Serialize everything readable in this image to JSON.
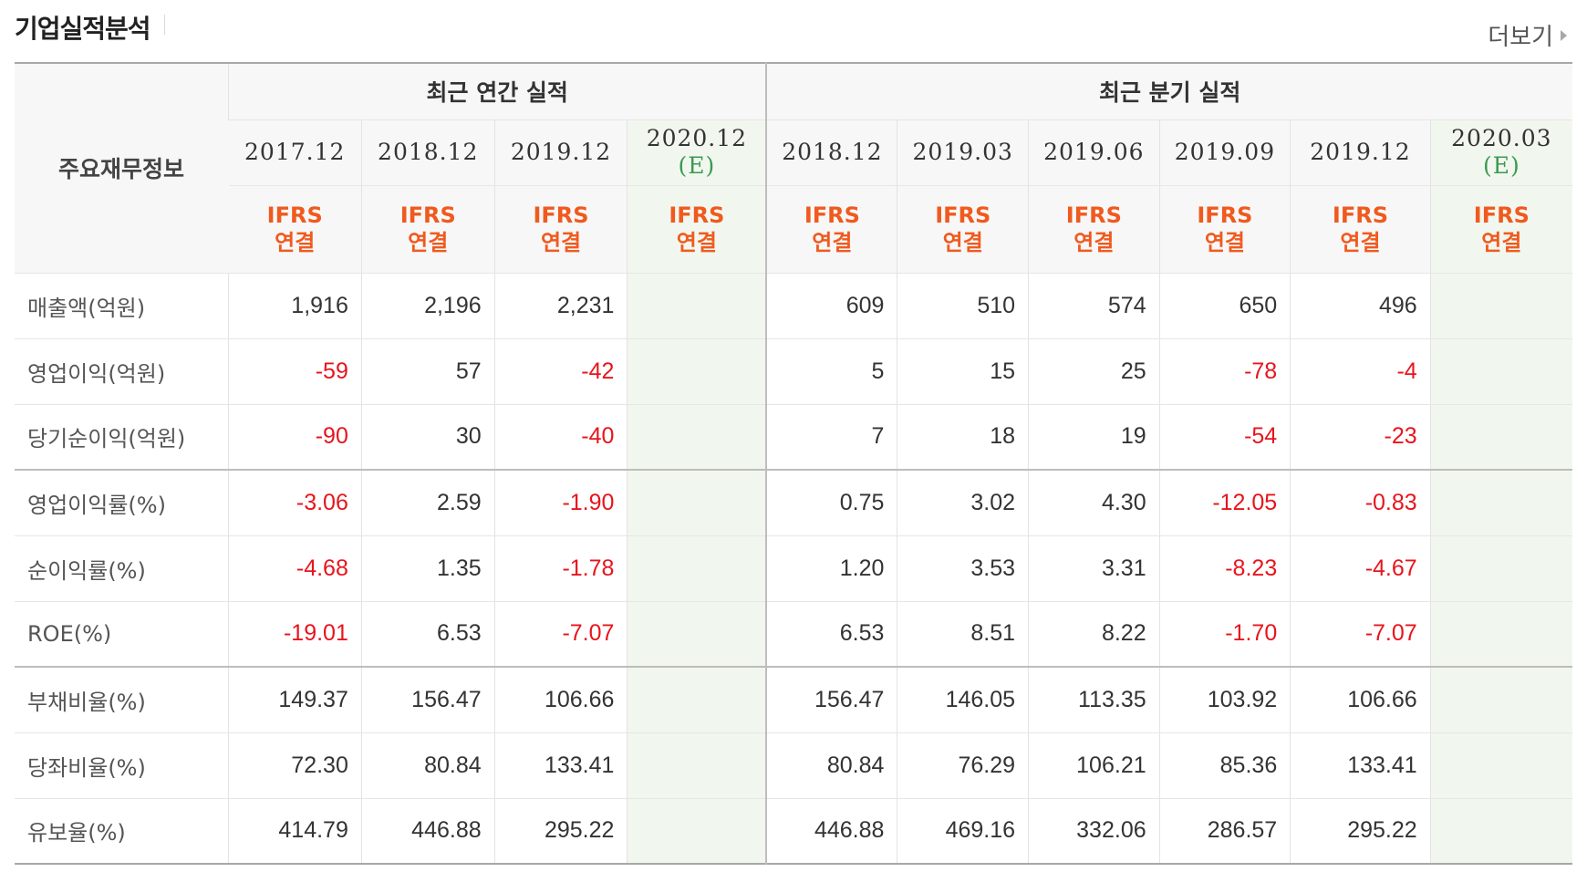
{
  "section_title": "기업실적분석",
  "more_label": "더보기",
  "table": {
    "row_header": "주요재무정보",
    "annual_group": "최근 연간 실적",
    "quarterly_group": "최근 분기 실적",
    "estimate_mark": "(E)",
    "std_line1": "IFRS",
    "std_line2": "연결",
    "annual_periods": [
      "2017.12",
      "2018.12",
      "2019.12",
      "2020.12"
    ],
    "quarterly_periods": [
      "2018.12",
      "2019.03",
      "2019.06",
      "2019.09",
      "2019.12",
      "2020.03"
    ],
    "rows": [
      {
        "label": "매출액(억원)",
        "annual": [
          "1,916",
          "2,196",
          "2,231",
          ""
        ],
        "quarterly": [
          "609",
          "510",
          "574",
          "650",
          "496",
          ""
        ]
      },
      {
        "label": "영업이익(억원)",
        "annual": [
          "-59",
          "57",
          "-42",
          ""
        ],
        "quarterly": [
          "5",
          "15",
          "25",
          "-78",
          "-4",
          ""
        ]
      },
      {
        "label": "당기순이익(억원)",
        "annual": [
          "-90",
          "30",
          "-40",
          ""
        ],
        "quarterly": [
          "7",
          "18",
          "19",
          "-54",
          "-23",
          ""
        ]
      },
      {
        "label": "영업이익률(%)",
        "annual": [
          "-3.06",
          "2.59",
          "-1.90",
          ""
        ],
        "quarterly": [
          "0.75",
          "3.02",
          "4.30",
          "-12.05",
          "-0.83",
          ""
        ]
      },
      {
        "label": "순이익률(%)",
        "annual": [
          "-4.68",
          "1.35",
          "-1.78",
          ""
        ],
        "quarterly": [
          "1.20",
          "3.53",
          "3.31",
          "-8.23",
          "-4.67",
          ""
        ]
      },
      {
        "label": "ROE(%)",
        "annual": [
          "-19.01",
          "6.53",
          "-7.07",
          ""
        ],
        "quarterly": [
          "6.53",
          "8.51",
          "8.22",
          "-1.70",
          "-7.07",
          ""
        ]
      },
      {
        "label": "부채비율(%)",
        "annual": [
          "149.37",
          "156.47",
          "106.66",
          ""
        ],
        "quarterly": [
          "156.47",
          "146.05",
          "113.35",
          "103.92",
          "106.66",
          ""
        ]
      },
      {
        "label": "당좌비율(%)",
        "annual": [
          "72.30",
          "80.84",
          "133.41",
          ""
        ],
        "quarterly": [
          "80.84",
          "76.29",
          "106.21",
          "85.36",
          "133.41",
          ""
        ]
      },
      {
        "label": "유보율(%)",
        "annual": [
          "414.79",
          "446.88",
          "295.22",
          ""
        ],
        "quarterly": [
          "446.88",
          "469.16",
          "332.06",
          "286.57",
          "295.22",
          ""
        ]
      }
    ]
  },
  "colors": {
    "negative": "#e8141c",
    "ifrs": "#f05a1e",
    "estimate_text": "#3a9a50",
    "estimate_bg": "#f1f7ef"
  }
}
